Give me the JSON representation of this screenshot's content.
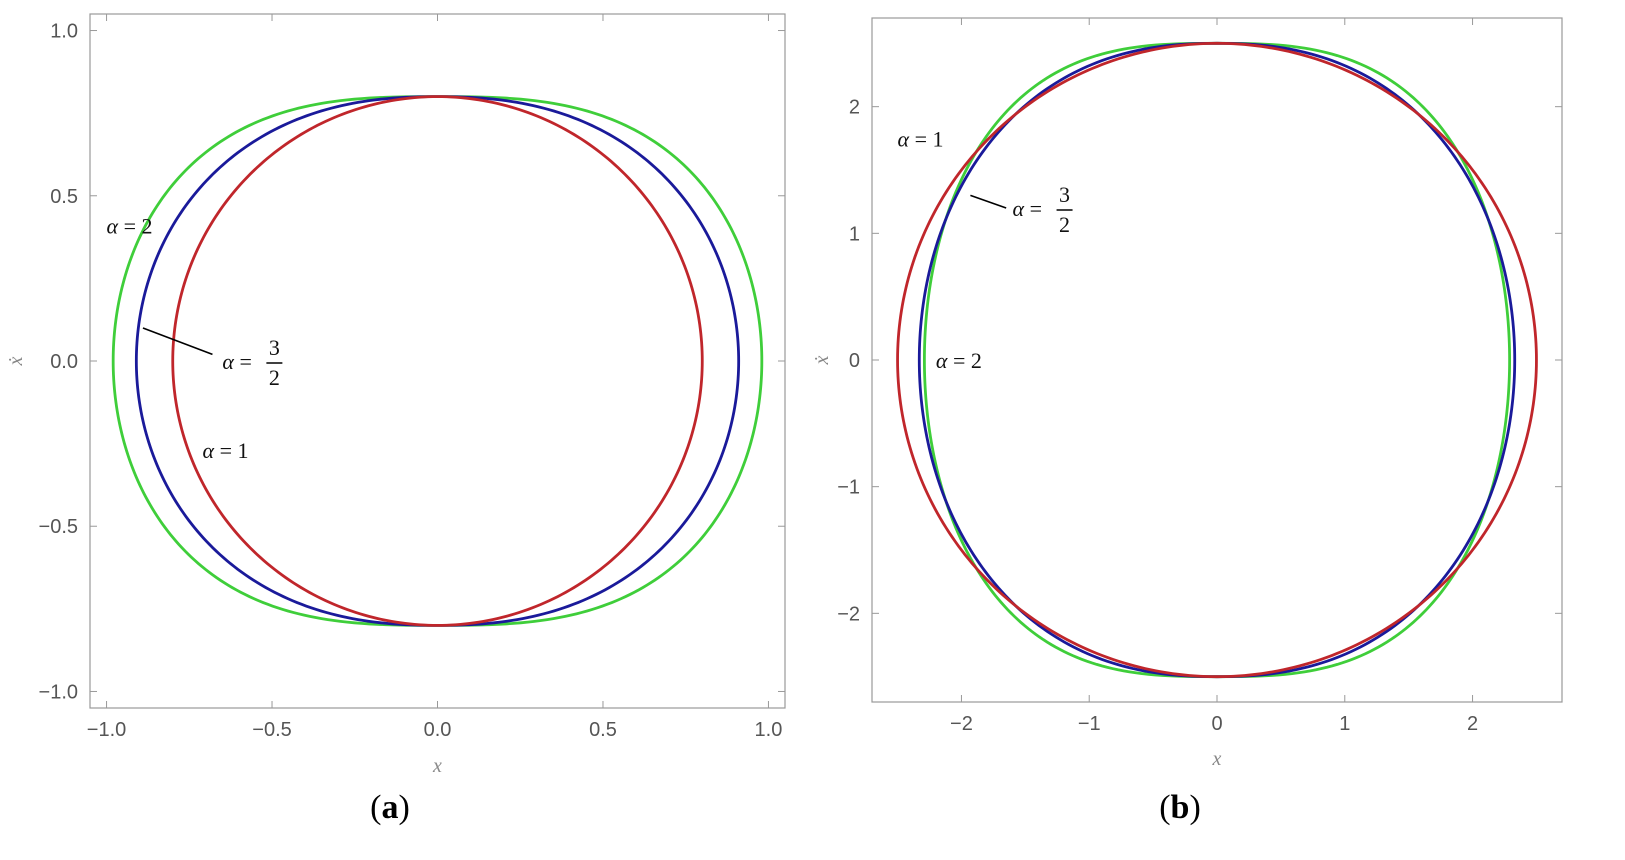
{
  "chart_data": [
    {
      "type": "line",
      "panel": "a",
      "caption_letter": "a",
      "xlabel": "x",
      "ylabel": "ẋ",
      "xlim": [
        -1.05,
        1.05
      ],
      "ylim": [
        -1.05,
        1.05
      ],
      "xticks": [
        -1.0,
        -0.5,
        0.0,
        0.5,
        1.0
      ],
      "xtick_labels": [
        "−1.0",
        "−0.5",
        "0.0",
        "0.5",
        "1.0"
      ],
      "yticks": [
        -1.0,
        -0.5,
        0.0,
        0.5,
        1.0
      ],
      "ytick_labels": [
        "−1.0",
        "−0.5",
        "0.0",
        "0.5",
        "1.0"
      ],
      "grid": false,
      "series": [
        {
          "alpha": 1,
          "color": "#c0262b",
          "x_extent": 0.8,
          "xdot_extent": 0.8
        },
        {
          "alpha": 1.5,
          "color": "#1a1a9a",
          "x_extent": 0.91,
          "xdot_extent": 0.8
        },
        {
          "alpha": 2,
          "color": "#3fce3a",
          "x_extent": 0.98,
          "xdot_extent": 0.8
        }
      ],
      "annotations": [
        {
          "greek": "α",
          "rest": " = 2",
          "x": -1.0,
          "y": 0.41
        },
        {
          "greek": "α",
          "rest": " = ",
          "num": "3",
          "den": "2",
          "x": -0.65,
          "y": 0.0,
          "pointer_to": [
            -0.89,
            0.1
          ],
          "pointer_from": [
            -0.68,
            0.02
          ]
        },
        {
          "greek": "α",
          "rest": " = 1",
          "x": -0.71,
          "y": -0.27
        }
      ]
    },
    {
      "type": "line",
      "panel": "b",
      "caption_letter": "b",
      "xlabel": "x",
      "ylabel": "ẋ",
      "xlim": [
        -2.7,
        2.7
      ],
      "ylim": [
        -2.7,
        2.7
      ],
      "xticks": [
        -2,
        -1,
        0,
        1,
        2
      ],
      "xtick_labels": [
        "−2",
        "−1",
        "0",
        "1",
        "2"
      ],
      "yticks": [
        -2,
        -1,
        0,
        1,
        2
      ],
      "ytick_labels": [
        "−2",
        "−1",
        "0",
        "1",
        "2"
      ],
      "grid": false,
      "series": [
        {
          "alpha": 1,
          "color": "#c0262b",
          "x_extent": 2.5,
          "xdot_extent": 2.5
        },
        {
          "alpha": 1.5,
          "color": "#1a1a9a",
          "x_extent": 2.33,
          "xdot_extent": 2.5
        },
        {
          "alpha": 2,
          "color": "#3fce3a",
          "x_extent": 2.29,
          "xdot_extent": 2.5
        }
      ],
      "annotations": [
        {
          "greek": "α",
          "rest": " = 1",
          "x": -2.5,
          "y": 1.75
        },
        {
          "greek": "α",
          "rest": " = ",
          "num": "3",
          "den": "2",
          "x": -1.6,
          "y": 1.2,
          "pointer_to": [
            -1.93,
            1.3
          ],
          "pointer_from": [
            -1.65,
            1.2
          ]
        },
        {
          "greek": "α",
          "rest": " = 2",
          "x": -2.2,
          "y": 0.0
        }
      ]
    }
  ]
}
